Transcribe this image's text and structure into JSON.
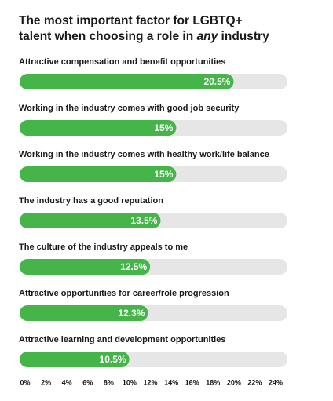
{
  "chart_data": {
    "type": "bar",
    "orientation": "horizontal",
    "title": [
      "The most important factor for LGBTQ+",
      "talent when choosing a role in",
      "any",
      "industry"
    ],
    "categories": [
      "Attractive compensation and benefit opportunities",
      "Working in the industry comes with good job security",
      "Working in the industry comes with healthy work/life balance",
      "The industry has a good reputation",
      "The culture of the industry appeals to me",
      "Attractive opportunities for career/role progression",
      "Attractive learning and development opportunities"
    ],
    "values": [
      20.5,
      15,
      15,
      13.5,
      12.5,
      12.3,
      10.5
    ],
    "value_labels": [
      "20.5%",
      "15%",
      "15%",
      "13.5%",
      "12.5%",
      "12.3%",
      "10.5%"
    ],
    "color": "#45b549",
    "track_color": "#e6e6e6",
    "xlim": [
      0,
      24
    ],
    "xticks": [
      {
        "value": 0,
        "label": "0%"
      },
      {
        "value": 2,
        "label": "2%"
      },
      {
        "value": 4,
        "label": "4%"
      },
      {
        "value": 6,
        "label": "6%"
      },
      {
        "value": 8,
        "label": "8%"
      },
      {
        "value": 10,
        "label": "10%"
      },
      {
        "value": 12,
        "label": "12%"
      },
      {
        "value": 14,
        "label": "14%"
      },
      {
        "value": 16,
        "label": "16%"
      },
      {
        "value": 18,
        "label": "18%"
      },
      {
        "value": 20,
        "label": "20%"
      },
      {
        "value": 22,
        "label": "22%"
      },
      {
        "value": 24,
        "label": "24%"
      }
    ],
    "grid": false
  }
}
